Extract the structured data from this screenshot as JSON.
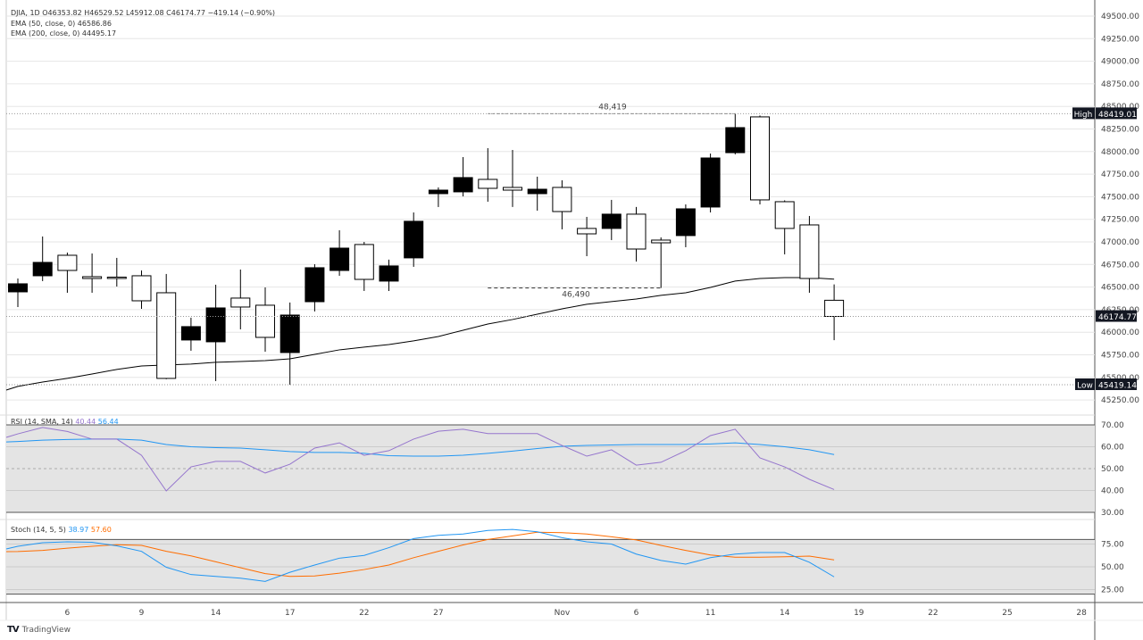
{
  "header": {
    "symbol_line": "DJIA, 1D  O46353.82  H46529.52  L45912.08  C46174.77  −419.14 (−0.90%)",
    "ema50_line": "EMA (50, close, 0)  46586.86",
    "ema200_line": "EMA (200, close, 0)  44495.17"
  },
  "rsi_legend": {
    "label": "RSI (14, SMA, 14)",
    "rsi_value": "40.44",
    "sma_value": "56.44"
  },
  "stoch_legend": {
    "label": "Stoch (14, 5, 5)",
    "k_value": "38.97",
    "d_value": "57.60"
  },
  "price_axis": {
    "ticks": [
      "49500.00",
      "49250.00",
      "49000.00",
      "48750.00",
      "48500.00",
      "48250.00",
      "48000.00",
      "47750.00",
      "47500.00",
      "47250.00",
      "47000.00",
      "46750.00",
      "46500.00",
      "46250.00",
      "46000.00",
      "45750.00",
      "45500.00",
      "45250.00"
    ],
    "high_tag": {
      "label": "High",
      "value": "48419.01"
    },
    "low_tag": {
      "label": "Low",
      "value": "45419.14"
    },
    "last_price": "46174.77"
  },
  "rsi_axis": {
    "ticks": [
      "70.00",
      "60.00",
      "50.00",
      "40.00",
      "30.00"
    ]
  },
  "stoch_axis": {
    "ticks": [
      "75.00",
      "50.00",
      "25.00"
    ]
  },
  "x_axis": {
    "labels": [
      "6",
      "9",
      "14",
      "17",
      "22",
      "27",
      "Nov",
      "6",
      "11",
      "14",
      "19",
      "22",
      "25",
      "28"
    ]
  },
  "annotations": {
    "high_marker": "48,419",
    "low_marker": "46,490"
  },
  "footer": {
    "brand": "TradingView",
    "logo_text": "TV"
  },
  "colors": {
    "up_fill": "#000000",
    "down_fill": "#ffffff",
    "ema": "#000000",
    "rsi": "#9575cd",
    "rsi_sma": "#2196f3",
    "stoch_k": "#2196f3",
    "stoch_d": "#ff6d00",
    "band": "#e4e4e4"
  },
  "chart_data": {
    "type": "candlestick",
    "symbol": "DJIA",
    "interval": "1D",
    "ylim": [
      45125,
      49600
    ],
    "dates": [
      "Oct 2",
      "Oct 3",
      "Oct 6",
      "Oct 7",
      "Oct 8",
      "Oct 9",
      "Oct 10",
      "Oct 13",
      "Oct 14",
      "Oct 15",
      "Oct 16",
      "Oct 17",
      "Oct 20",
      "Oct 21",
      "Oct 22",
      "Oct 23",
      "Oct 24",
      "Oct 27",
      "Oct 28",
      "Oct 29",
      "Oct 30",
      "Oct 31",
      "Nov 3",
      "Nov 4",
      "Nov 5",
      "Nov 6",
      "Nov 7",
      "Nov 10",
      "Nov 11",
      "Nov 12",
      "Nov 13",
      "Nov 14",
      "Nov 17",
      "Nov 18"
    ],
    "ohlc": [
      [
        46447,
        46595,
        46279,
        46536
      ],
      [
        46625,
        47060,
        46566,
        46773
      ],
      [
        46852,
        46882,
        46437,
        46684
      ],
      [
        46615,
        46872,
        46437,
        46595
      ],
      [
        46610,
        46823,
        46506,
        46605
      ],
      [
        46625,
        46684,
        46259,
        46348
      ],
      [
        46437,
        46645,
        45480,
        45489
      ],
      [
        45914,
        46161,
        45795,
        46062
      ],
      [
        45894,
        46526,
        45459,
        46269
      ],
      [
        46378,
        46694,
        46032,
        46279
      ],
      [
        46299,
        46496,
        45785,
        45943
      ],
      [
        45775,
        46329,
        45419,
        46190
      ],
      [
        46338,
        46753,
        46230,
        46714
      ],
      [
        46684,
        47129,
        46625,
        46931
      ],
      [
        46971,
        47000,
        46457,
        46585
      ],
      [
        46566,
        46803,
        46457,
        46734
      ],
      [
        46823,
        47326,
        46724,
        47228
      ],
      [
        47534,
        47603,
        47386,
        47573
      ],
      [
        47554,
        47939,
        47504,
        47712
      ],
      [
        47692,
        48038,
        47445,
        47593
      ],
      [
        47603,
        48018,
        47386,
        47573
      ],
      [
        47534,
        47722,
        47346,
        47583
      ],
      [
        47603,
        47682,
        47139,
        47336
      ],
      [
        47149,
        47277,
        46842,
        47089
      ],
      [
        47149,
        47465,
        47020,
        47307
      ],
      [
        47307,
        47386,
        46783,
        46921
      ],
      [
        47020,
        47050,
        46490,
        46990
      ],
      [
        47070,
        47415,
        46941,
        47366
      ],
      [
        47386,
        47978,
        47326,
        47929
      ],
      [
        47988,
        48419,
        47969,
        48265
      ],
      [
        48384,
        48400,
        47415,
        47465
      ],
      [
        47445,
        47460,
        46862,
        47149
      ],
      [
        47188,
        47287,
        46437,
        46595
      ],
      [
        46353.82,
        46529.52,
        45912.08,
        46174.77
      ]
    ],
    "ema50": [
      45400,
      45449,
      45489,
      45538,
      45588,
      45627,
      45637,
      45647,
      45667,
      45676,
      45686,
      45706,
      45755,
      45805,
      45835,
      45864,
      45904,
      45953,
      46022,
      46091,
      46141,
      46200,
      46259,
      46309,
      46339,
      46368,
      46408,
      46437,
      46496,
      46566,
      46595,
      46605,
      46605,
      46587
    ],
    "rsi": [
      65.9,
      68.8,
      67,
      63.5,
      63.5,
      56.1,
      39.8,
      50.8,
      53.3,
      53.3,
      48,
      52,
      59.4,
      61.8,
      56.1,
      58.2,
      63.5,
      67.1,
      68,
      66,
      66,
      66,
      60.6,
      55.7,
      58.6,
      51.6,
      52.9,
      58.2,
      65.1,
      68,
      54.9,
      50.8,
      45.1,
      40.44
    ],
    "rsi_sma": [
      62.4,
      63,
      63.3,
      63.5,
      63.5,
      63,
      61,
      60,
      59.6,
      59.4,
      58.6,
      57.8,
      57.4,
      57.4,
      57,
      55.9,
      55.7,
      55.7,
      56.1,
      57,
      58,
      59.2,
      60.2,
      60.6,
      60.8,
      61,
      61,
      61,
      61.3,
      61.8,
      61,
      60,
      58.6,
      56.44
    ],
    "stoch_k": [
      72.5,
      76.5,
      77.5,
      77,
      73,
      67,
      49.5,
      41.5,
      39.5,
      37.5,
      34,
      44,
      52,
      59.5,
      62.5,
      71,
      81,
      84.5,
      86,
      90,
      91,
      88.5,
      82,
      77.5,
      75,
      64,
      57,
      53,
      60,
      64,
      65.7,
      65.7,
      55,
      38.97
    ],
    "stoch_d": [
      66.8,
      68,
      70.5,
      72.5,
      74.3,
      73.5,
      67,
      62,
      55.5,
      49,
      42.5,
      39.5,
      40,
      43,
      47,
      52,
      60,
      67,
      74,
      80,
      84,
      88,
      87.5,
      86,
      83,
      79.5,
      73.5,
      68,
      63,
      60.5,
      60.5,
      61,
      61.8,
      57.6
    ],
    "rsi_levels": [
      70,
      50,
      30
    ],
    "stoch_levels": [
      80,
      50,
      20
    ]
  }
}
